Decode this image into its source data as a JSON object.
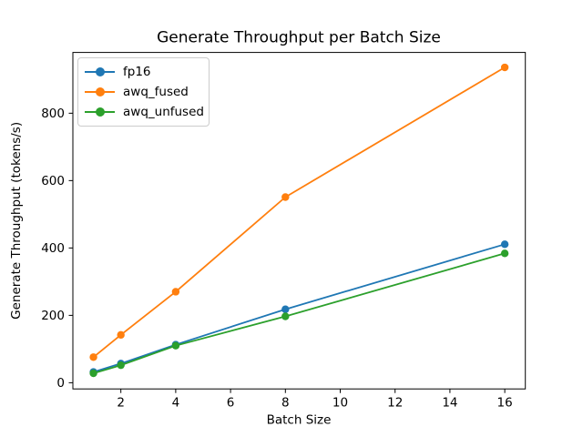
{
  "chart_data": {
    "type": "line",
    "title": "Generate Throughput per Batch Size",
    "xlabel": "Batch Size",
    "ylabel": "Generate Throughput (tokens/s)",
    "x": [
      1,
      2,
      4,
      8,
      16
    ],
    "series": [
      {
        "name": "fp16",
        "color": "#1f77b4",
        "values": [
          32,
          57,
          113,
          218,
          411
        ]
      },
      {
        "name": "awq_fused",
        "color": "#ff7f0e",
        "values": [
          76,
          142,
          270,
          551,
          936
        ]
      },
      {
        "name": "awq_unfused",
        "color": "#2ca02c",
        "values": [
          28,
          52,
          110,
          197,
          384
        ]
      }
    ],
    "xticks": [
      2,
      4,
      6,
      8,
      10,
      12,
      14,
      16
    ],
    "yticks": [
      0,
      200,
      400,
      600,
      800
    ],
    "xlim": [
      0.25,
      16.75
    ],
    "ylim": [
      -18.4,
      980.4
    ],
    "grid": false,
    "legend_position": "upper left",
    "marker": "o",
    "background_color": "#ffffff",
    "axis_color": "#000000"
  }
}
